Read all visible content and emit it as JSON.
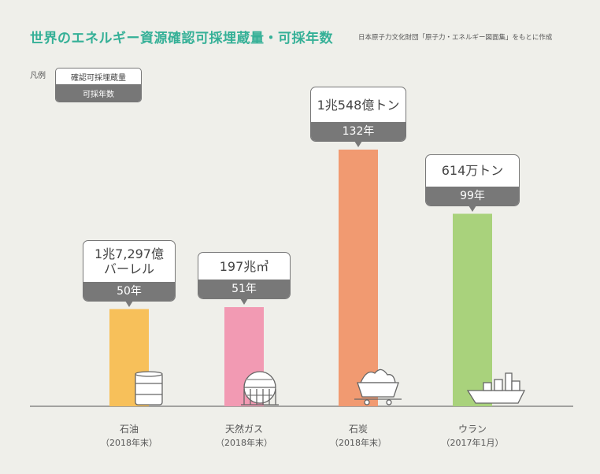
{
  "title": "世界のエネルギー資源確認可採埋蔵量・可採年数",
  "source": "日本原子力文化財団「原子力・エネルギー図面集」をもとに作成",
  "legend": {
    "label": "凡例",
    "reserve": "確認可採埋蔵量",
    "years": "可採年数"
  },
  "colors": {
    "oil": "#f7c05a",
    "gas": "#f29ab3",
    "coal": "#f19a71",
    "uranium": "#a9d27c",
    "accent": "#35b097"
  },
  "chart_data": {
    "type": "bar",
    "ylabel": "",
    "xlabel": "",
    "ylim": [
      0,
      132
    ],
    "categories": [
      "石油",
      "天然ガス",
      "石炭",
      "ウラン"
    ],
    "notes": [
      "（2018年末）",
      "（2018年末）",
      "（2018年末）",
      "（2017年1月）"
    ],
    "reserves": [
      "1兆7,297億\nバーレル",
      "197兆㎥",
      "1兆548億トン",
      "614万トン"
    ],
    "year_labels": [
      "50年",
      "51年",
      "132年",
      "99年"
    ],
    "values": [
      50,
      51,
      132,
      99
    ],
    "icons": [
      "oil-drum-icon",
      "gas-tank-icon",
      "coal-cart-icon",
      "ship-icon"
    ]
  }
}
